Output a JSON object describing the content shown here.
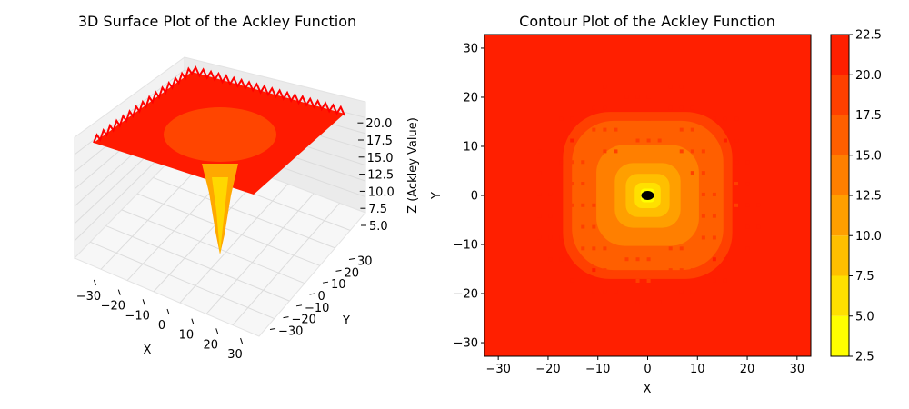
{
  "chart_data": [
    {
      "type": "surface3d",
      "title": "3D Surface Plot of the Ackley Function",
      "xlabel": "X",
      "ylabel": "Y",
      "zlabel": "Z (Ackley Value)",
      "xlim": [
        -32.768,
        32.768
      ],
      "ylim": [
        -32.768,
        32.768
      ],
      "zlim": [
        3.0,
        22.5
      ],
      "x_ticks": [
        "−30",
        "−20",
        "−10",
        "0",
        "10",
        "20",
        "30"
      ],
      "y_ticks": [
        "−30",
        "−20",
        "−10",
        "0",
        "10",
        "20",
        "30"
      ],
      "z_ticks": [
        "5.0",
        "7.5",
        "10.0",
        "12.5",
        "15.0",
        "17.5",
        "20.0"
      ],
      "colormap": [
        "#ffff00",
        "#ffd400",
        "#ffaa00",
        "#ff8000",
        "#ff5500",
        "#ff2a00",
        "#ff0000"
      ],
      "grid": true
    },
    {
      "type": "contour",
      "title": "Contour Plot of the Ackley Function",
      "xlabel": "X",
      "ylabel": "Y",
      "xlim": [
        -32.768,
        32.768
      ],
      "ylim": [
        -32.768,
        32.768
      ],
      "x_ticks": [
        -30,
        -20,
        -10,
        0,
        10,
        20,
        30
      ],
      "y_ticks": [
        -30,
        -20,
        -10,
        0,
        10,
        20,
        30
      ],
      "x_tick_labels": [
        "−30",
        "−20",
        "−10",
        "0",
        "10",
        "20",
        "30"
      ],
      "y_tick_labels": [
        "−30",
        "−20",
        "−10",
        "0",
        "10",
        "20",
        "30"
      ],
      "levels": [
        2.5,
        5.0,
        7.5,
        10.0,
        12.5,
        15.0,
        17.5,
        20.0,
        22.5
      ],
      "colorbar_ticks": [
        "2.5",
        "5.0",
        "7.5",
        "10.0",
        "12.5",
        "15.0",
        "17.5",
        "20.0",
        "22.5"
      ],
      "level_colors": [
        "#ffff00",
        "#ffe000",
        "#ffbf00",
        "#ff9f00",
        "#ff7f00",
        "#ff5f00",
        "#ff4000",
        "#ff1f00",
        "#ff0000"
      ],
      "minimum_marker": {
        "x": 0,
        "y": 0,
        "color": "#000000"
      }
    }
  ]
}
